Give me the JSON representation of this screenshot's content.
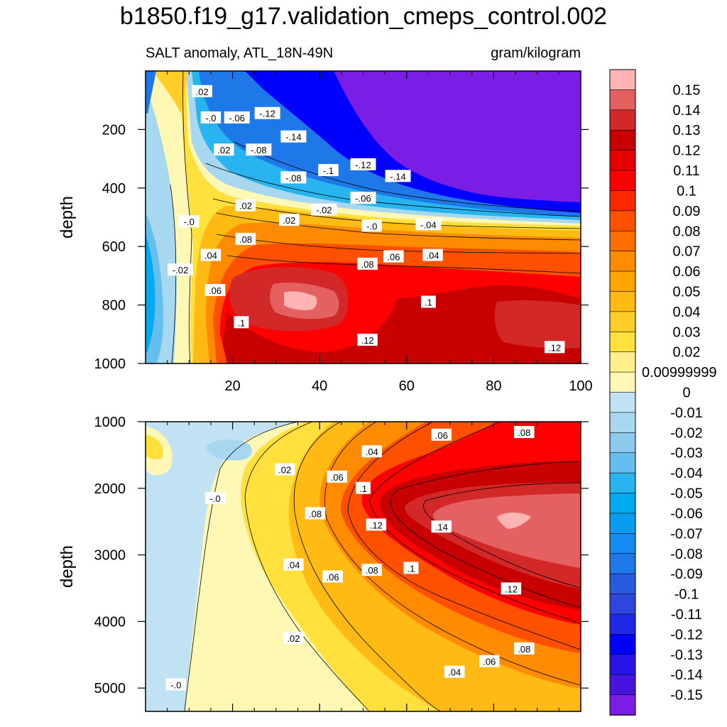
{
  "chart_data": {
    "type": "heatmap",
    "title": "b1850.f19_g17.validation_cmeps_control.002",
    "subtitle_left": "SALT anomaly, ATL_18N-49N",
    "subtitle_right": "gram/kilogram",
    "xlabel": "",
    "ylabel": "depth",
    "panels": [
      {
        "name": "upper",
        "xlim": [
          0,
          100
        ],
        "ylim": [
          1000,
          0
        ],
        "x_ticks": [
          20,
          40,
          60,
          80,
          100
        ],
        "x_tick_labels": [
          "20",
          "40",
          "60",
          "80",
          "100"
        ],
        "y_ticks": [
          200,
          400,
          600,
          800,
          1000
        ],
        "y_tick_labels": [
          "200",
          "400",
          "600",
          "800",
          "1000"
        ],
        "contour_labels": [
          {
            "text": ".02",
            "x": 13,
            "y": 70
          },
          {
            "text": "-.0",
            "x": 15,
            "y": 160
          },
          {
            "text": ".02",
            "x": 18,
            "y": 270
          },
          {
            "text": "-.06",
            "x": 21,
            "y": 160
          },
          {
            "text": "-.12",
            "x": 28,
            "y": 145
          },
          {
            "text": "-.08",
            "x": 26,
            "y": 270
          },
          {
            "text": "-.14",
            "x": 34,
            "y": 225
          },
          {
            "text": "-.08",
            "x": 34,
            "y": 365
          },
          {
            "text": "-.1",
            "x": 42,
            "y": 340
          },
          {
            "text": "-.12",
            "x": 50,
            "y": 320
          },
          {
            "text": "-.14",
            "x": 58,
            "y": 360
          },
          {
            "text": "-.06",
            "x": 50,
            "y": 435
          },
          {
            "text": ".02",
            "x": 23,
            "y": 460
          },
          {
            "text": "-.02",
            "x": 41,
            "y": 475
          },
          {
            "text": ".02",
            "x": 33,
            "y": 510
          },
          {
            "text": "-.0",
            "x": 52,
            "y": 530
          },
          {
            "text": "-.04",
            "x": 65,
            "y": 525
          },
          {
            "text": "-.0",
            "x": 10,
            "y": 515
          },
          {
            "text": ".08",
            "x": 23,
            "y": 575
          },
          {
            "text": ".04",
            "x": 15,
            "y": 630
          },
          {
            "text": "-.02",
            "x": 8,
            "y": 680
          },
          {
            "text": ".08",
            "x": 51,
            "y": 660
          },
          {
            "text": ".06",
            "x": 57,
            "y": 635
          },
          {
            "text": ".04",
            "x": 66,
            "y": 630
          },
          {
            "text": ".06",
            "x": 16,
            "y": 750
          },
          {
            "text": ".1",
            "x": 22,
            "y": 860
          },
          {
            "text": ".1",
            "x": 65,
            "y": 790
          },
          {
            "text": ".12",
            "x": 51,
            "y": 920
          },
          {
            "text": ".12",
            "x": 94,
            "y": 945
          }
        ]
      },
      {
        "name": "lower",
        "xlim": [
          0,
          100
        ],
        "ylim": [
          5350,
          1000
        ],
        "x_ticks": [
          20,
          40,
          60,
          80,
          100
        ],
        "x_tick_labels": [
          "",
          "",
          "",
          "",
          ""
        ],
        "y_ticks": [
          1000,
          2000,
          3000,
          4000,
          5000
        ],
        "y_tick_labels": [
          "1000",
          "2000",
          "3000",
          "4000",
          "5000"
        ],
        "contour_labels": [
          {
            "text": ".06",
            "x": 68,
            "y": 1200
          },
          {
            "text": ".08",
            "x": 87,
            "y": 1160
          },
          {
            "text": ".04",
            "x": 52,
            "y": 1450
          },
          {
            "text": ".02",
            "x": 32,
            "y": 1720
          },
          {
            "text": ".06",
            "x": 44,
            "y": 1830
          },
          {
            "text": ".1",
            "x": 50,
            "y": 2000
          },
          {
            "text": "-.0",
            "x": 16,
            "y": 2150
          },
          {
            "text": ".08",
            "x": 39,
            "y": 2380
          },
          {
            "text": ".12",
            "x": 53,
            "y": 2550
          },
          {
            "text": ".14",
            "x": 68,
            "y": 2580
          },
          {
            "text": ".04",
            "x": 34,
            "y": 3150
          },
          {
            "text": ".06",
            "x": 43,
            "y": 3330
          },
          {
            "text": ".08",
            "x": 52,
            "y": 3230
          },
          {
            "text": ".1",
            "x": 61,
            "y": 3200
          },
          {
            "text": ".12",
            "x": 84,
            "y": 3510
          },
          {
            "text": ".02",
            "x": 34,
            "y": 4250
          },
          {
            "text": ".08",
            "x": 87,
            "y": 4410
          },
          {
            "text": ".06",
            "x": 79,
            "y": 4600
          },
          {
            "text": ".04",
            "x": 71,
            "y": 4760
          },
          {
            "text": "-.0",
            "x": 7,
            "y": 4950
          }
        ]
      }
    ],
    "colorbar": {
      "labels": [
        "0.15",
        "0.14",
        "0.13",
        "0.12",
        "0.11",
        "0.1",
        "0.09",
        "0.08",
        "0.07",
        "0.06",
        "0.05",
        "0.04",
        "0.03",
        "0.02",
        "0.00999999",
        "0",
        "-0.01",
        "-0.02",
        "-0.03",
        "-0.04",
        "-0.05",
        "-0.06",
        "-0.07",
        "-0.08",
        "-0.09",
        "-0.1",
        "-0.11",
        "-0.12",
        "-0.13",
        "-0.14",
        "-0.15"
      ],
      "colors": [
        "#ffb4b4",
        "#e56060",
        "#d22828",
        "#c80000",
        "#e60000",
        "#ff0000",
        "#ff2800",
        "#ff5000",
        "#ff6e00",
        "#ff8c00",
        "#ffa500",
        "#ffba14",
        "#ffcd28",
        "#ffe03c",
        "#fff08c",
        "#fff8b4",
        "#c0e2f2",
        "#a8d8ef",
        "#8ccaeb",
        "#64beee",
        "#28b4ee",
        "#00aaf0",
        "#0a9cf0",
        "#148cf0",
        "#1e78e8",
        "#285ae0",
        "#2d46dc",
        "#1e28e6",
        "#0000ff",
        "#2814e6",
        "#4614dc",
        "#7a1ee6"
      ]
    }
  }
}
